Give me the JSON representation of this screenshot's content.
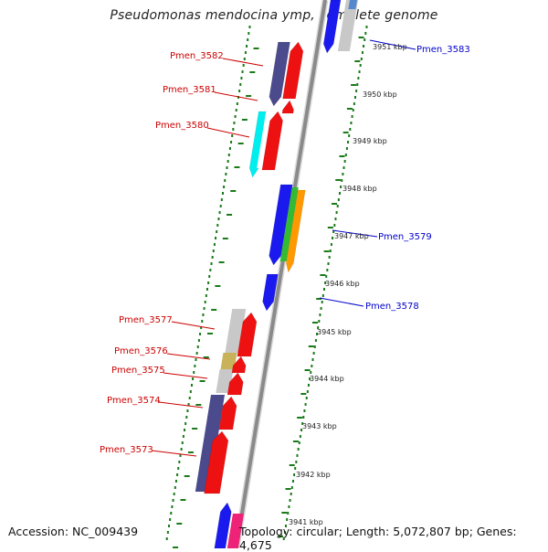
{
  "title": "Pseudomonas mendocina ymp, complete genome",
  "accession_text": "Accession: NC_009439",
  "topology_text": "Topology: circular; Length: 5,072,807 bp; Genes: 4,675",
  "colors": {
    "backbone": "#8a8a8a",
    "tick": "#1a7a1a",
    "label_red": "#cc0000",
    "label_blue": "#0000cc",
    "cds": "#ee1111",
    "navy": "#4a4a8c",
    "cyan": "#00eeee",
    "blue": "#1a1aee",
    "green": "#33bb33",
    "orange": "#ff9900",
    "gray": "#c8c8c8",
    "olive": "#c8b25a",
    "pink": "#ee2277"
  },
  "kbp_ticks": [
    "3951 kbp",
    "3950 kbp",
    "3949 kbp",
    "3948 kbp",
    "3947 kbp",
    "3946 kbp",
    "3945 kbp",
    "3944 kbp",
    "3943 kbp",
    "3942 kbp",
    "3941 kbp"
  ],
  "genes_left": [
    "Pmen_3582",
    "Pmen_3581",
    "Pmen_3580",
    "Pmen_3577",
    "Pmen_3576",
    "Pmen_3575",
    "Pmen_3574",
    "Pmen_3573"
  ],
  "genes_right": [
    "Pmen_3583",
    "Pmen_3579",
    "Pmen_3578"
  ]
}
